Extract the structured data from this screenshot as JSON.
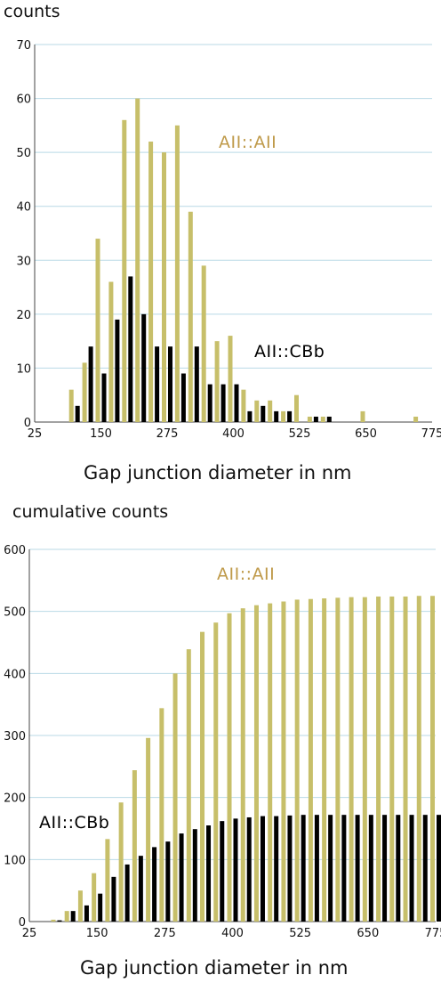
{
  "colors": {
    "aii": "#c7bf6a",
    "aii_label": "#bf9a4a",
    "cbb": "#000000",
    "grid": "#b9d9e6",
    "axis": "#444444"
  },
  "chart_data": [
    {
      "type": "bar",
      "ylabel": "counts",
      "xlabel": "Gap junction diameter in nm",
      "ylim": [
        0,
        70
      ],
      "yticks": [
        "0",
        "10",
        "20",
        "30",
        "40",
        "50",
        "60",
        "70"
      ],
      "xlim": [
        0,
        750
      ],
      "xticks": [
        "25",
        "150",
        "275",
        "400",
        "525",
        "650",
        "775"
      ],
      "x": [
        100,
        125,
        150,
        175,
        200,
        225,
        250,
        275,
        300,
        325,
        350,
        375,
        400,
        425,
        450,
        475,
        500,
        525,
        550,
        575,
        600,
        625,
        650,
        675,
        700,
        725,
        750
      ],
      "series": [
        {
          "name": "AII::AII",
          "values": [
            6,
            11,
            34,
            26,
            56,
            60,
            52,
            50,
            55,
            39,
            29,
            15,
            16,
            6,
            4,
            4,
            2,
            5,
            1,
            1,
            0,
            0,
            2,
            0,
            0,
            0,
            1
          ]
        },
        {
          "name": "AII::CBb",
          "values": [
            3,
            14,
            9,
            19,
            27,
            20,
            14,
            14,
            9,
            14,
            7,
            7,
            7,
            2,
            3,
            2,
            2,
            0,
            1,
            1,
            0,
            0,
            0,
            0,
            0,
            0,
            0
          ]
        }
      ],
      "grid": true
    },
    {
      "type": "bar",
      "ylabel": "cumulative counts",
      "xlabel": "Gap junction diameter in nm",
      "ylim": [
        0,
        600
      ],
      "yticks": [
        "0",
        "100",
        "200",
        "300",
        "400",
        "500",
        "600"
      ],
      "xlim": [
        0,
        750
      ],
      "xticks": [
        "25",
        "150",
        "275",
        "400",
        "525",
        "650",
        "775"
      ],
      "x": [
        75,
        100,
        125,
        150,
        175,
        200,
        225,
        250,
        275,
        300,
        325,
        350,
        375,
        400,
        425,
        450,
        475,
        500,
        525,
        550,
        575,
        600,
        625,
        650,
        675,
        700,
        725,
        750,
        775
      ],
      "series": [
        {
          "name": "AII::AII",
          "values": [
            3,
            17,
            50,
            78,
            133,
            192,
            244,
            296,
            344,
            400,
            439,
            467,
            482,
            497,
            505,
            510,
            513,
            516,
            519,
            520,
            521,
            522,
            523,
            523,
            524,
            524,
            524,
            525,
            525
          ]
        },
        {
          "name": "AII::CBb",
          "values": [
            2,
            17,
            26,
            45,
            72,
            92,
            106,
            120,
            129,
            142,
            149,
            155,
            162,
            166,
            168,
            170,
            170,
            171,
            172,
            172,
            172,
            172,
            172,
            172,
            172,
            172,
            172,
            172,
            172
          ]
        }
      ],
      "grid": true
    }
  ]
}
